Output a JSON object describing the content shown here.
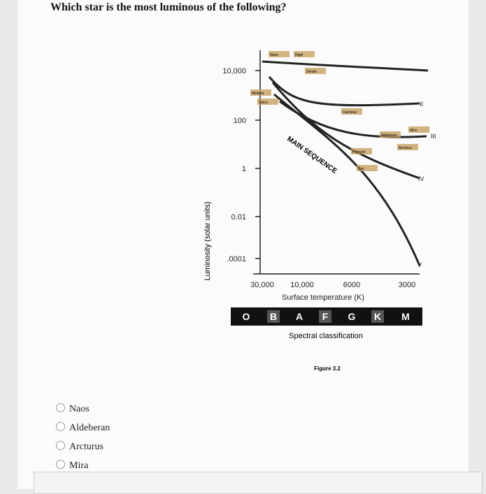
{
  "question": "Which star is the most luminous of the following?",
  "figure": {
    "y_axis_label": "Luminosity (solar units)",
    "y_ticks": [
      "10,000",
      "100",
      "1",
      "0.01",
      ".0001"
    ],
    "x_ticks": [
      "30,000",
      "10,000",
      "6000",
      "3000"
    ],
    "x_axis_label": "Surface temperature (K)",
    "spectral_classes": [
      "O",
      "B",
      "A",
      "F",
      "G",
      "K",
      "M"
    ],
    "spectral_label": "Spectral classification",
    "main_sequence_label": "MAIN SEQUENCE",
    "luminosity_classes": [
      "II",
      "III",
      "IV",
      "V"
    ],
    "stars": [
      "Naos",
      "Rigel",
      "Deneb",
      "Mintaka",
      "Spica",
      "Canopus",
      "Aldebaran",
      "Mira",
      "Arcturus",
      "Procyon",
      "Sun"
    ],
    "caption": "Figure 3.2"
  },
  "options": [
    "Naos",
    "Aldeberan",
    "Arcturus",
    "Mira"
  ]
}
